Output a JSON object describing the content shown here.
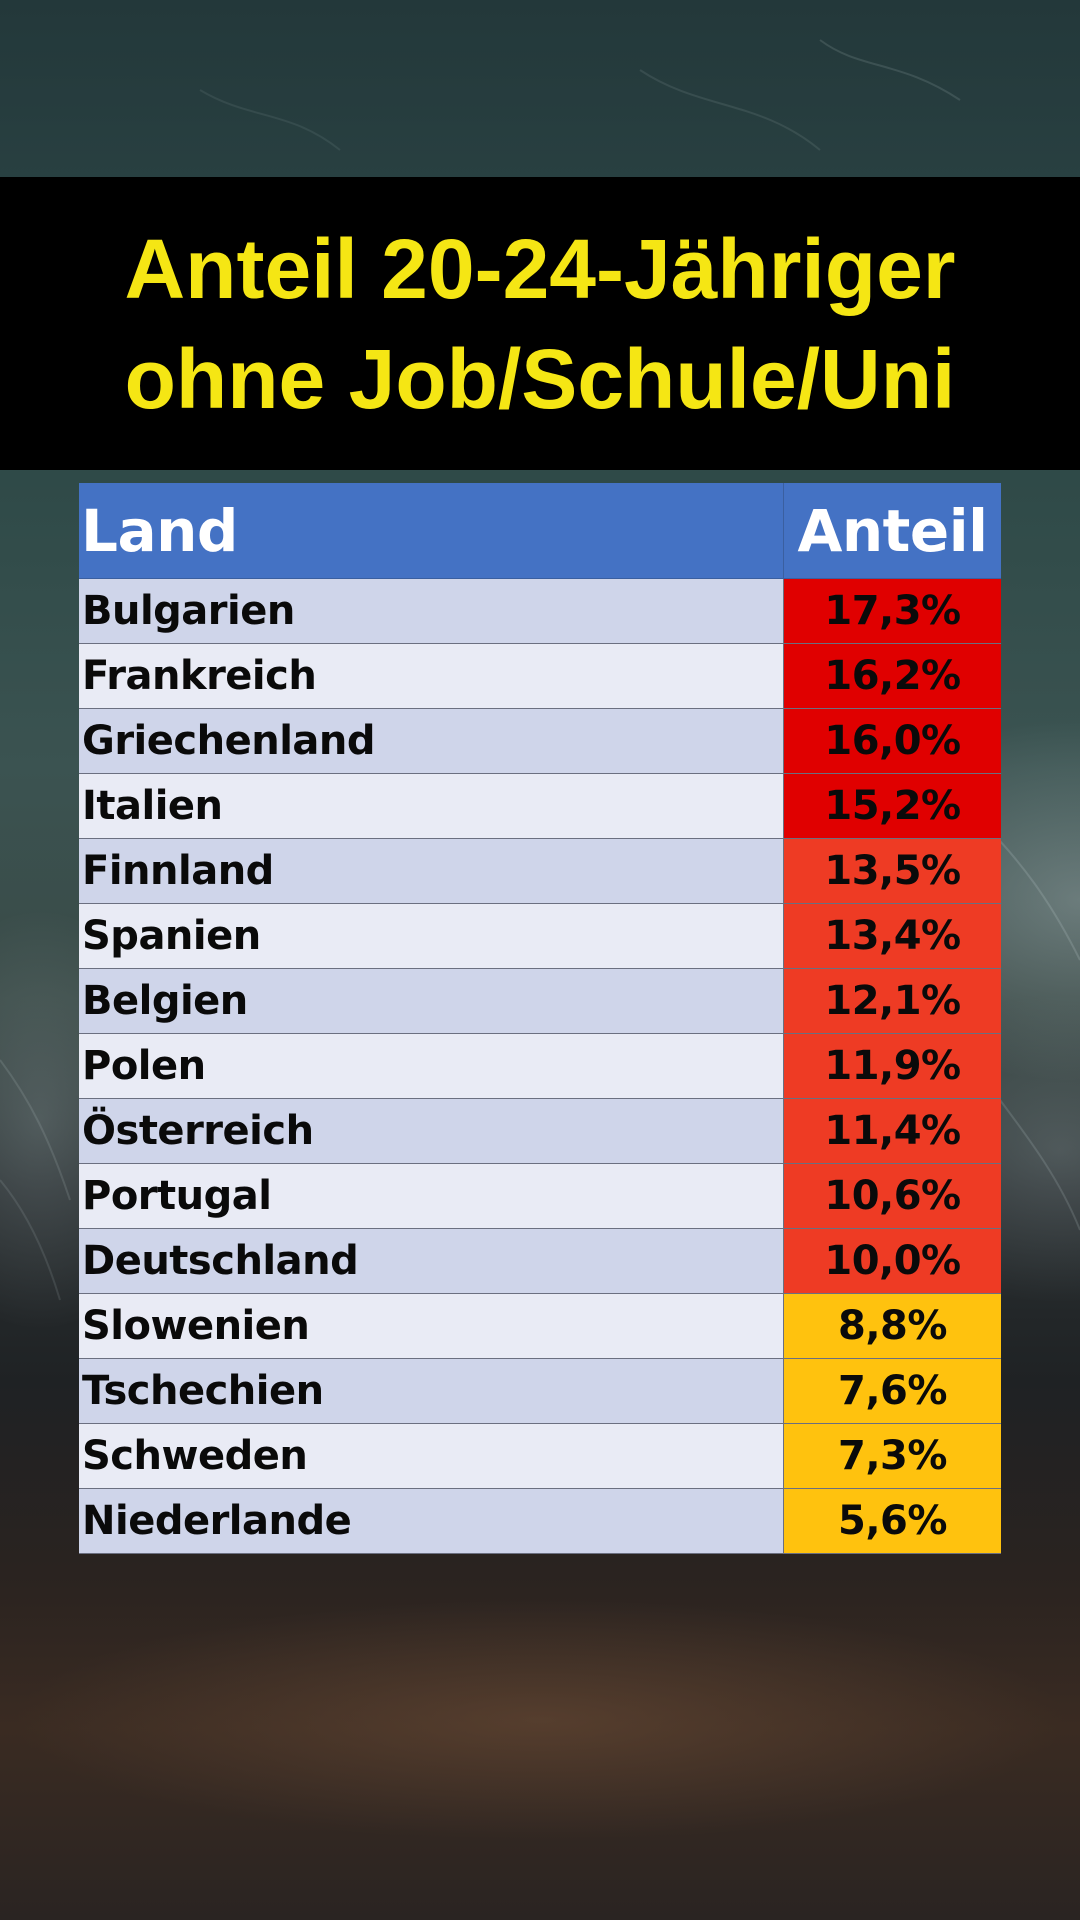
{
  "title": {
    "line1": "Anteil 20-24-Jähriger",
    "line2": "ohne Job/Schule/Uni"
  },
  "colors": {
    "title_text": "#f5e614",
    "title_bg": "#000000",
    "header_bg": "#4472c4",
    "band_dark_red": "#e00000",
    "band_red": "#ee3b24",
    "band_yellow": "#ffc20e",
    "row_odd": "#cfd5ea",
    "row_even": "#e9ebf5"
  },
  "chart_data": {
    "type": "table",
    "columns": [
      "Land",
      "Anteil"
    ],
    "rows": [
      {
        "land": "Bulgarien",
        "anteil": "17,3%",
        "value": 17.3,
        "band": "dark_red"
      },
      {
        "land": "Frankreich",
        "anteil": "16,2%",
        "value": 16.2,
        "band": "dark_red"
      },
      {
        "land": "Griechenland",
        "anteil": "16,0%",
        "value": 16.0,
        "band": "dark_red"
      },
      {
        "land": "Italien",
        "anteil": "15,2%",
        "value": 15.2,
        "band": "dark_red"
      },
      {
        "land": "Finnland",
        "anteil": "13,5%",
        "value": 13.5,
        "band": "red"
      },
      {
        "land": "Spanien",
        "anteil": "13,4%",
        "value": 13.4,
        "band": "red"
      },
      {
        "land": "Belgien",
        "anteil": "12,1%",
        "value": 12.1,
        "band": "red"
      },
      {
        "land": "Polen",
        "anteil": "11,9%",
        "value": 11.9,
        "band": "red"
      },
      {
        "land": "Österreich",
        "anteil": "11,4%",
        "value": 11.4,
        "band": "red"
      },
      {
        "land": "Portugal",
        "anteil": "10,6%",
        "value": 10.6,
        "band": "red"
      },
      {
        "land": "Deutschland",
        "anteil": "10,0%",
        "value": 10.0,
        "band": "red"
      },
      {
        "land": "Slowenien",
        "anteil": "8,8%",
        "value": 8.8,
        "band": "yellow"
      },
      {
        "land": "Tschechien",
        "anteil": "7,6%",
        "value": 7.6,
        "band": "yellow"
      },
      {
        "land": "Schweden",
        "anteil": "7,3%",
        "value": 7.3,
        "band": "yellow"
      },
      {
        "land": "Niederlande",
        "anteil": "5,6%",
        "value": 5.6,
        "band": "yellow"
      }
    ]
  }
}
